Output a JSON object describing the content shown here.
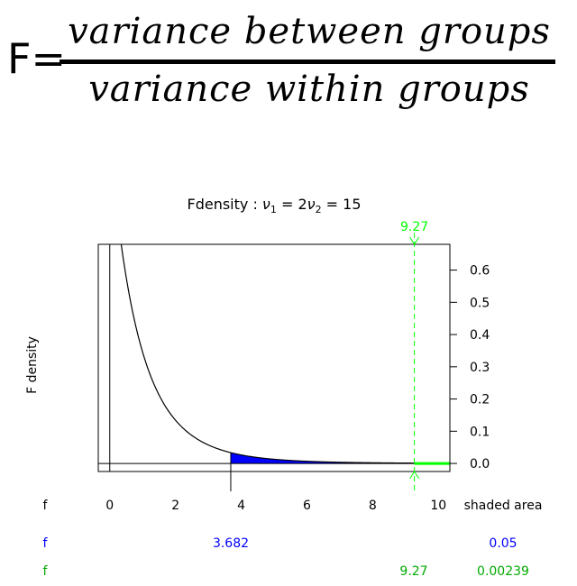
{
  "formula": {
    "lhs": "F=",
    "numerator": "variance between groups",
    "denominator": "variance within groups"
  },
  "colors": {
    "curve": "#000000",
    "shaded_lower": "#0000ff",
    "shaded_upper": "#00ff00",
    "critical_line": "#00ff00",
    "axis": "#000000"
  },
  "chart_data": {
    "type": "area",
    "title_prefix": "Fdensity",
    "title_sep": " : ",
    "title_nu1_sym": "ν",
    "title_nu1_sub": "1",
    "title_eq1": " = 2",
    "title_nu2_sym": "ν",
    "title_nu2_sub": "2",
    "title_eq2": " = 15",
    "df1": 2,
    "df2": 15,
    "ylabel": "F density",
    "xlim": [
      -0.35,
      10.35
    ],
    "ylim": [
      -0.025,
      0.68
    ],
    "x_ticks": [
      0,
      2,
      4,
      6,
      8,
      10
    ],
    "y_ticks": [
      0.0,
      0.1,
      0.2,
      0.3,
      0.4,
      0.5,
      0.6
    ],
    "y_tick_labels": [
      "0.0",
      "0.1",
      "0.2",
      "0.3",
      "0.4",
      "0.5",
      "0.6"
    ],
    "x_tick_labels": [
      "0",
      "2",
      "4",
      "6",
      "8",
      "10"
    ],
    "shaded_lower": {
      "from": 3.682,
      "to": 10.35,
      "color": "#0000ff"
    },
    "critical": {
      "x": 9.27,
      "label": "9.27",
      "color": "#00ff00"
    },
    "table": {
      "header_row": {
        "label": "f",
        "right": "shaded area"
      },
      "blue_row": {
        "label": "f",
        "f_value": "3.682",
        "area": "0.05",
        "f_at": 3.682,
        "color": "#0000ff"
      },
      "green_row": {
        "label": "f",
        "f_value": "9.27",
        "area": "0.00239",
        "f_at": 9.27,
        "color": "#00aa00"
      }
    }
  }
}
